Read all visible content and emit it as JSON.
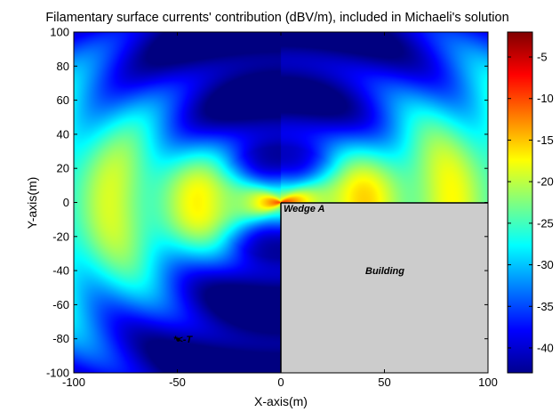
{
  "chart_data": {
    "type": "heatmap",
    "title": "Filamentary surface currents' contribution (dBV/m), included in Michaeli's solution",
    "xlabel": "X-axis(m)",
    "ylabel": "Y-axis(m)",
    "xlim": [
      -100,
      100
    ],
    "ylim": [
      -100,
      100
    ],
    "x_ticks": [
      "-100",
      "-50",
      "0",
      "50",
      "100"
    ],
    "y_ticks": [
      "100",
      "80",
      "60",
      "40",
      "20",
      "0",
      "-20",
      "-40",
      "-60",
      "-80",
      "-100"
    ],
    "colorbar": {
      "range": [
        -43,
        -2
      ],
      "ticks": [
        "-5",
        "-10",
        "-15",
        "-20",
        "-25",
        "-30",
        "-35",
        "-40"
      ],
      "tick_values": [
        -5,
        -10,
        -15,
        -20,
        -25,
        -30,
        -35,
        -40
      ],
      "colormap": "jet"
    },
    "grid": false,
    "field_samples": [
      {
        "x": 0,
        "y": 0,
        "value": -2
      },
      {
        "x": 5,
        "y": 1,
        "value": -6
      },
      {
        "x": -10,
        "y": 2,
        "value": -10
      },
      {
        "x": -30,
        "y": 0,
        "value": -17
      },
      {
        "x": -100,
        "y": 0,
        "value": -21
      },
      {
        "x": -50,
        "y": 50,
        "value": -21
      },
      {
        "x": 0,
        "y": 100,
        "value": -42
      },
      {
        "x": 0,
        "y": -100,
        "value": -40
      },
      {
        "x": 50,
        "y": 80,
        "value": -26
      },
      {
        "x": -50,
        "y": -80,
        "value": -28
      }
    ],
    "annotations": [
      {
        "text": "Wedge A",
        "x": 2,
        "y": -3
      },
      {
        "text": "Building",
        "x": 50,
        "y": -33
      },
      {
        "text": "*<-T",
        "x": -50,
        "y": -80
      }
    ],
    "building": {
      "x_range": [
        0,
        100
      ],
      "y_range": [
        -100,
        0
      ],
      "fill": "#cccccc"
    }
  }
}
